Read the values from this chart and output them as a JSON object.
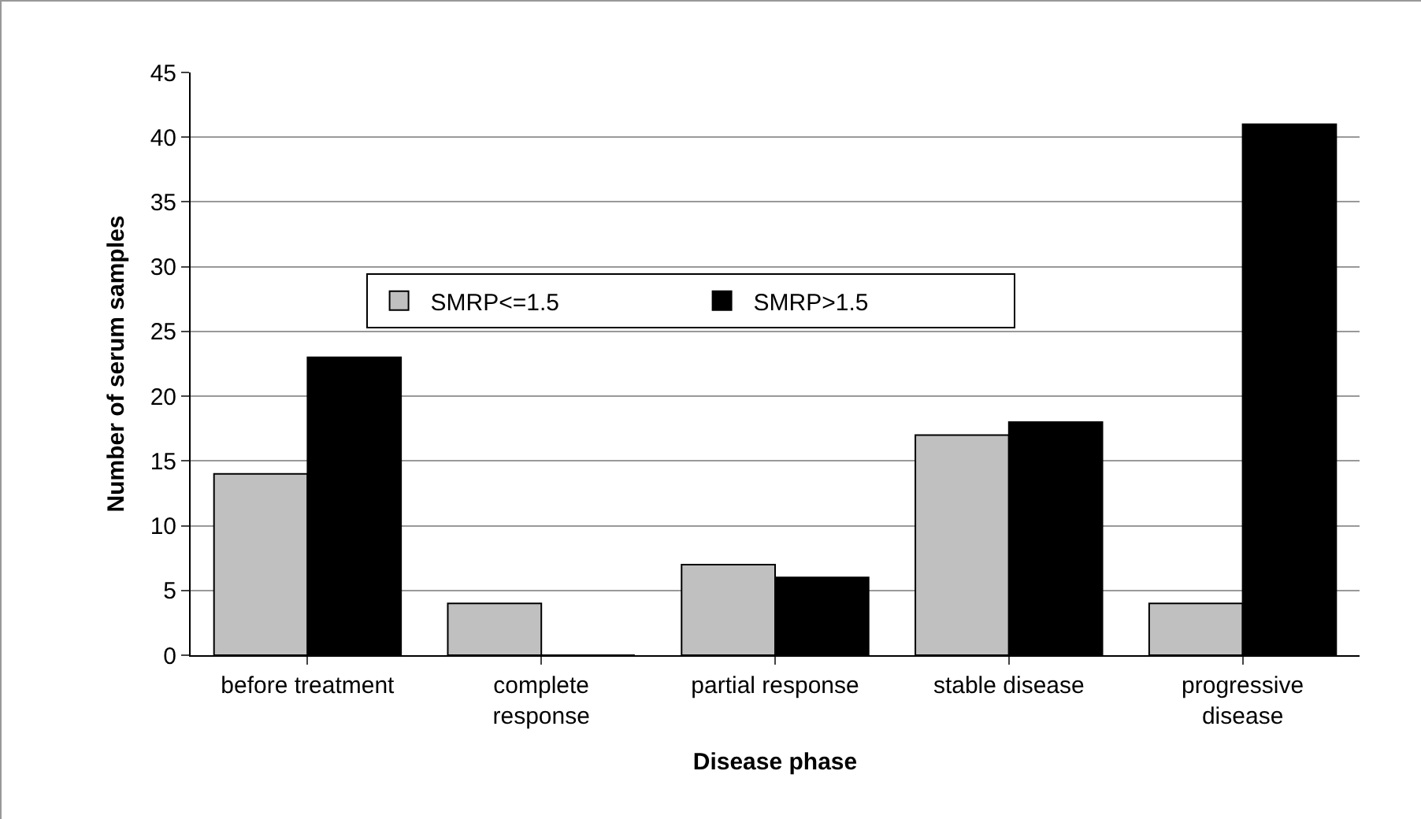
{
  "chart_data": {
    "type": "bar",
    "xlabel": "Disease phase",
    "ylabel": "Number of serum samples",
    "categories": [
      "before treatment",
      "complete response",
      "partial response",
      "stable disease",
      "progressive disease"
    ],
    "series": [
      {
        "name": "SMRP<=1.5",
        "color": "#c0c0c0",
        "values": [
          14,
          4,
          7,
          17,
          4
        ]
      },
      {
        "name": "SMRP>1.5",
        "color": "#000000",
        "values": [
          23,
          0,
          6,
          18,
          41
        ]
      }
    ],
    "ylim": [
      0,
      45
    ],
    "yticks": [
      0,
      5,
      10,
      15,
      20,
      25,
      30,
      35,
      40,
      45
    ],
    "grid": "y",
    "legend": "top left"
  }
}
